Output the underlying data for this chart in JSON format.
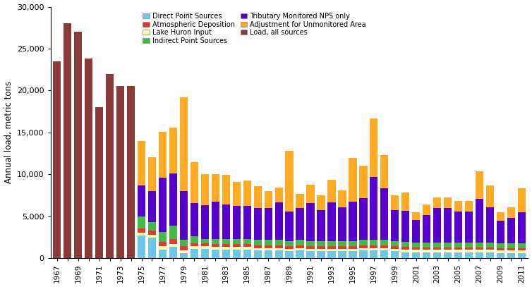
{
  "years": [
    1967,
    1968,
    1969,
    1970,
    1971,
    1972,
    1973,
    1974,
    1975,
    1976,
    1977,
    1978,
    1979,
    1980,
    1981,
    1982,
    1983,
    1984,
    1985,
    1986,
    1987,
    1988,
    1989,
    1990,
    1991,
    1992,
    1993,
    1994,
    1995,
    1996,
    1997,
    1998,
    1999,
    2000,
    2001,
    2002,
    2003,
    2004,
    2005,
    2006,
    2007,
    2008,
    2009,
    2010,
    2011
  ],
  "direct_point": [
    0,
    0,
    0,
    0,
    0,
    0,
    0,
    0,
    2700,
    2400,
    1000,
    1300,
    600,
    1100,
    1100,
    1000,
    1000,
    1000,
    1000,
    900,
    900,
    900,
    800,
    900,
    800,
    800,
    800,
    800,
    800,
    900,
    900,
    900,
    800,
    700,
    700,
    700,
    700,
    700,
    700,
    700,
    700,
    700,
    600,
    600,
    600
  ],
  "lake_huron": [
    0,
    0,
    0,
    0,
    0,
    0,
    0,
    0,
    350,
    350,
    400,
    400,
    350,
    300,
    300,
    300,
    300,
    300,
    300,
    300,
    300,
    300,
    300,
    300,
    300,
    300,
    300,
    300,
    300,
    300,
    300,
    300,
    300,
    300,
    280,
    280,
    280,
    280,
    280,
    280,
    280,
    280,
    280,
    280,
    280
  ],
  "atmospheric": [
    0,
    0,
    0,
    0,
    0,
    0,
    0,
    0,
    500,
    500,
    500,
    600,
    500,
    400,
    400,
    350,
    350,
    350,
    350,
    350,
    350,
    350,
    350,
    350,
    350,
    350,
    350,
    350,
    350,
    350,
    350,
    350,
    350,
    350,
    300,
    300,
    300,
    300,
    300,
    300,
    300,
    300,
    300,
    300,
    300
  ],
  "indirect_point": [
    0,
    0,
    0,
    0,
    0,
    0,
    0,
    0,
    1400,
    1000,
    1200,
    1600,
    700,
    800,
    500,
    600,
    600,
    600,
    600,
    600,
    600,
    600,
    600,
    600,
    600,
    600,
    600,
    600,
    600,
    600,
    600,
    600,
    600,
    600,
    550,
    550,
    550,
    550,
    550,
    550,
    600,
    600,
    550,
    550,
    550
  ],
  "tributary_nps": [
    0,
    0,
    0,
    0,
    0,
    0,
    0,
    0,
    3700,
    3700,
    6500,
    6200,
    5800,
    4000,
    4000,
    4500,
    4100,
    4000,
    4000,
    3800,
    3800,
    4500,
    3500,
    3800,
    4500,
    3700,
    4600,
    4000,
    4700,
    5000,
    7500,
    6200,
    3700,
    3700,
    2700,
    3300,
    4100,
    4100,
    3700,
    3700,
    5200,
    4200,
    2700,
    3100,
    3700
  ],
  "adjustment": [
    0,
    0,
    0,
    0,
    0,
    0,
    0,
    0,
    5300,
    4100,
    5500,
    5500,
    11200,
    4800,
    3700,
    3300,
    3600,
    2800,
    3000,
    2600,
    2000,
    1800,
    7200,
    1700,
    2200,
    1700,
    2700,
    2000,
    5200,
    3900,
    7000,
    3900,
    1700,
    2200,
    900,
    1300,
    1300,
    1300,
    1300,
    1300,
    3300,
    2600,
    1000,
    1200,
    2900
  ],
  "load_all": [
    23500,
    28000,
    27000,
    23800,
    18000,
    22000,
    20500,
    20500,
    0,
    0,
    0,
    0,
    0,
    0,
    0,
    0,
    0,
    0,
    0,
    0,
    0,
    0,
    0,
    0,
    0,
    0,
    0,
    0,
    0,
    0,
    0,
    0,
    0,
    0,
    0,
    0,
    0,
    0,
    0,
    0,
    0,
    0,
    0,
    0,
    0
  ],
  "colors": {
    "direct_point": "#6EC6E8",
    "lake_huron": "#FFFFAA",
    "atmospheric": "#EE3333",
    "indirect_point": "#44BB44",
    "tributary_nps": "#5500CC",
    "adjustment": "#FFAA22",
    "load_all": "#8B3A3A"
  },
  "ylabel": "Annual load, metric tons",
  "ylim": [
    0,
    30000
  ],
  "yticks": [
    0,
    5000,
    10000,
    15000,
    20000,
    25000,
    30000
  ],
  "legend_order": [
    [
      "direct_point",
      "Direct Point Sources"
    ],
    [
      "atmospheric",
      "Atmospheric Deposition"
    ],
    [
      "lake_huron",
      "Lake Huron Input"
    ],
    [
      "indirect_point",
      "Indirect Point Sources"
    ],
    [
      "tributary_nps",
      "Tributary Monitored NPS only"
    ],
    [
      "adjustment",
      "Adjustment for Unmonitored Area"
    ],
    [
      "load_all",
      "Load, all sources"
    ]
  ]
}
